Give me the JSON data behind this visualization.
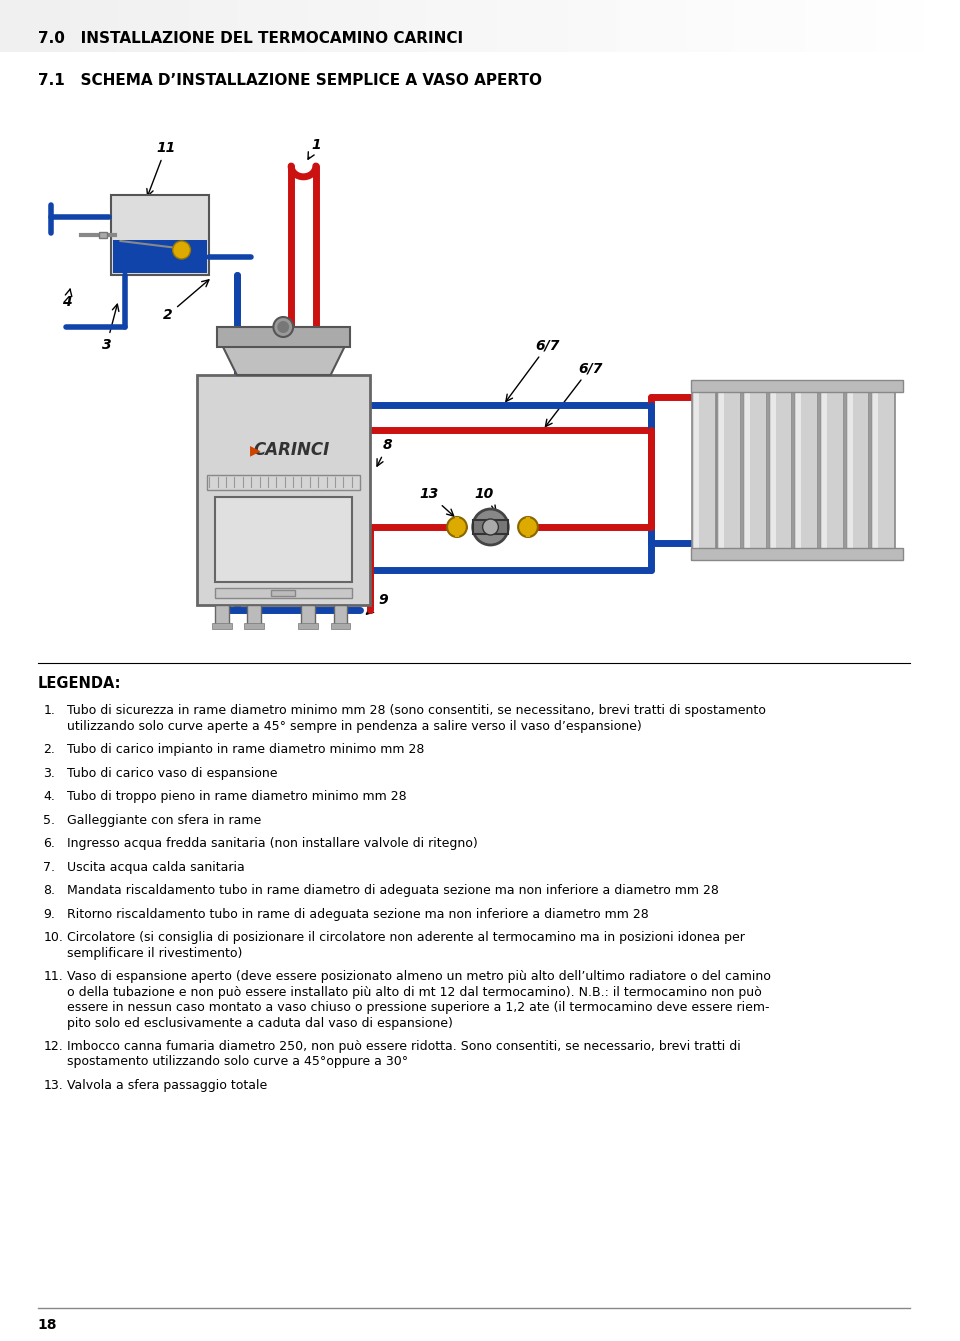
{
  "title1": "7.0   INSTALLAZIONE DEL TERMOCAMINO CARINCI",
  "title2": "7.1   SCHEMA D’INSTALLAZIONE SEMPLICE A VASO APERTO",
  "legend_title": "LEGENDA:",
  "legend_items": [
    [
      "1.",
      "Tubo di sicurezza in rame diametro minimo mm 28 (sono consentiti, se necessitano, brevi tratti di spostamento",
      "utilizzando solo curve aperte a 45° sempre in pendenza a salire verso il vaso d’espansione)"
    ],
    [
      "2.",
      "Tubo di carico impianto in rame diametro minimo mm 28"
    ],
    [
      "3.",
      "Tubo di carico vaso di espansione"
    ],
    [
      "4.",
      "Tubo di troppo pieno in rame diametro minimo mm 28"
    ],
    [
      "5.",
      "Galleggiante con sfera in rame"
    ],
    [
      "6.",
      "Ingresso acqua fredda sanitaria (non installare valvole di ritegno)"
    ],
    [
      "7.",
      "Uscita acqua calda sanitaria"
    ],
    [
      "8.",
      "Mandata riscaldamento tubo in rame diametro di adeguata sezione ma non inferiore a diametro mm 28"
    ],
    [
      "9.",
      "Ritorno riscaldamento tubo in rame di adeguata sezione ma non inferiore a diametro mm 28"
    ],
    [
      "10.",
      "Circolatore (si consiglia di posizionare il circolatore non aderente al termocamino ma in posizioni idonea per",
      "semplificare il rivestimento)"
    ],
    [
      "11.",
      "Vaso di espansione aperto (deve essere posizionato almeno un metro più alto dell’ultimo radiatore o del camino",
      "o della tubazione e non può essere installato più alto di mt 12 dal termocamino). N.B.: il termocamino non può",
      "essere in nessun caso montato a vaso chiuso o pressione superiore a 1,2 ate (il termocamino deve essere riem-",
      "pito solo ed esclusivamente a caduta dal vaso di espansione)"
    ],
    [
      "12.",
      "Imbocco canna fumaria diametro 250, non può essere ridotta. Sono consentiti, se necessario, brevi tratti di",
      "spostamento utilizzando solo curve a 45°oppure a 30°"
    ],
    [
      "13.",
      "Valvola a sfera passaggio totale"
    ]
  ],
  "page_number": "18",
  "bg_color": "#ffffff",
  "red_pipe": "#cc1111",
  "blue_pipe": "#1144aa",
  "pipe_lw": 5
}
